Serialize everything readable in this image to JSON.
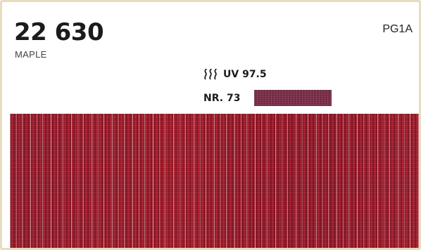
{
  "product": {
    "code": "22 630",
    "name": "MAPLE",
    "price_group": "PG1A"
  },
  "uv": {
    "icon": "heat-waves-icon",
    "label": "UV 97.5"
  },
  "color_ref": {
    "label": "NR. 73",
    "swatch_color": "#7a2f4a"
  },
  "fabric": {
    "base_color": "#a3202f"
  }
}
